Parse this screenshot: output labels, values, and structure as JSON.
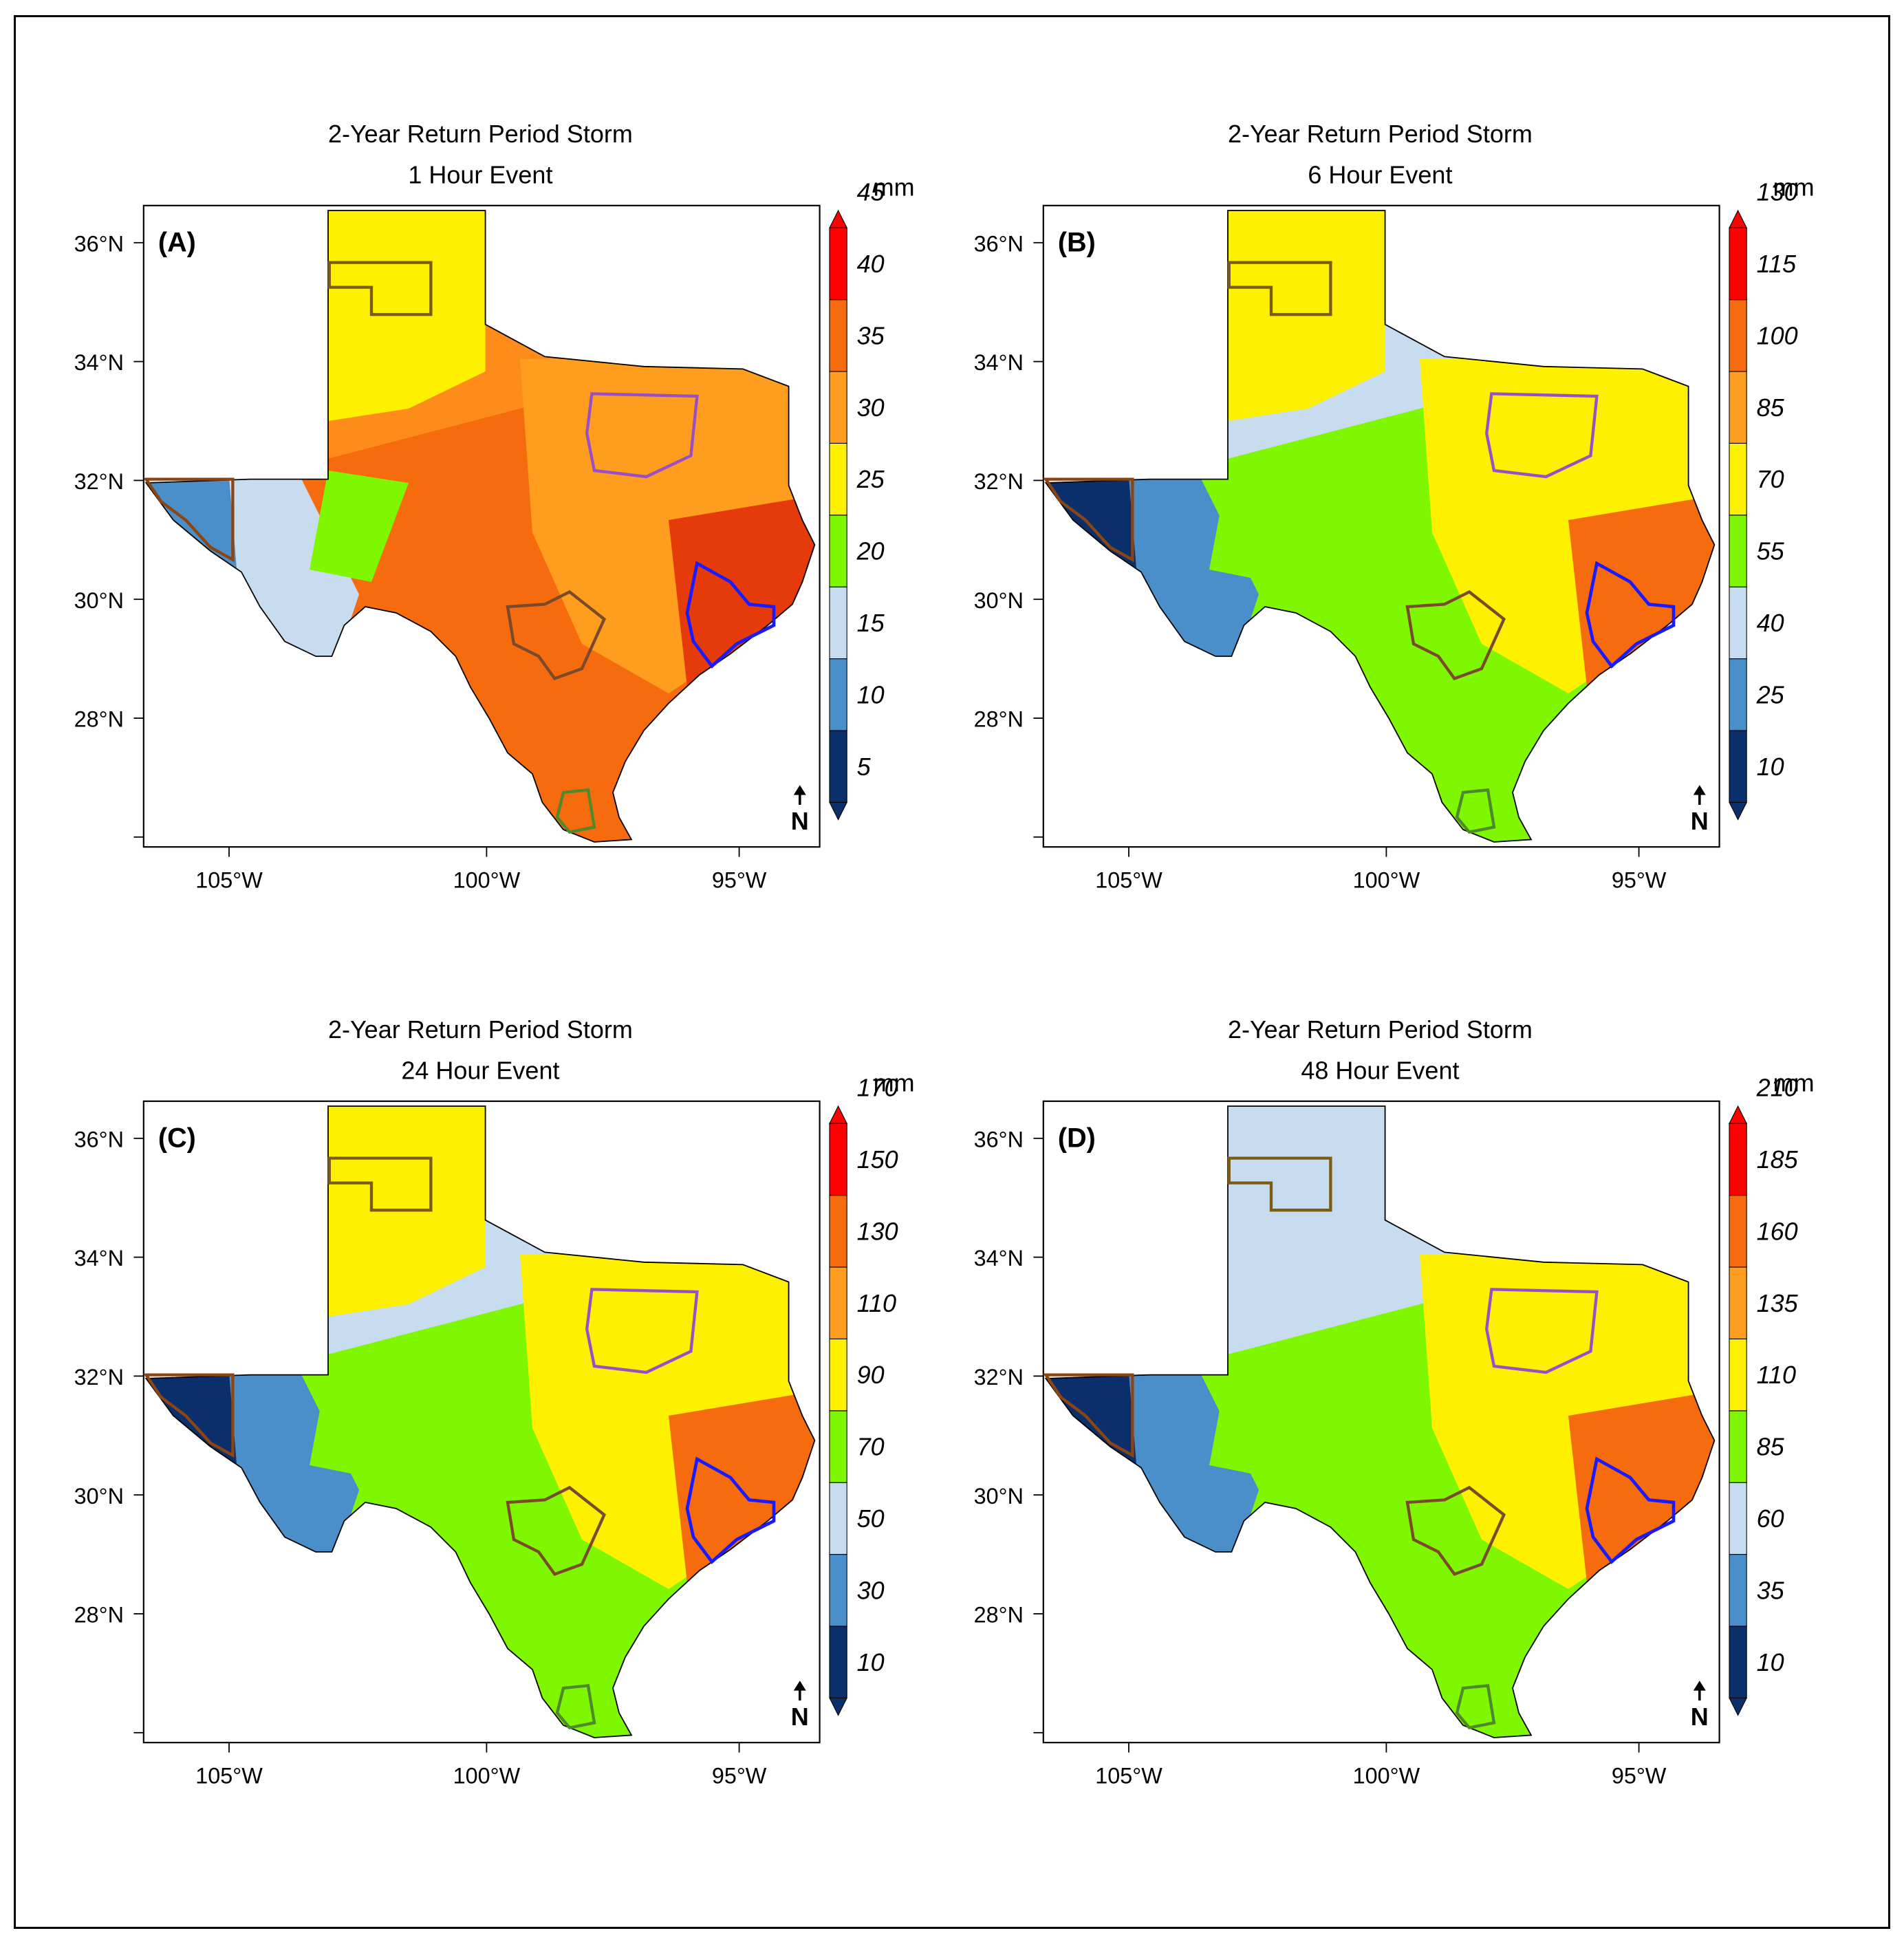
{
  "figure": {
    "panels": [
      {
        "id": "panel-a",
        "label": "(A)",
        "title_line1": "2-Year Return Period Storm",
        "title_line2": "1 Hour Event",
        "unit": "mm",
        "colorbar_ticks": [
          "5",
          "10",
          "15",
          "20",
          "25",
          "30",
          "35",
          "40",
          "45"
        ],
        "fill_colors": [
          "#fe8c1a",
          "#f56b0e",
          "#fdf000",
          "#7ef700",
          "#ff9d1e"
        ],
        "extra_colors": [
          "#e53a0a",
          "#c8dcef",
          "#4a8fc9"
        ]
      },
      {
        "id": "panel-b",
        "label": "(B)",
        "title_line1": "2-Year Return Period Storm",
        "title_line2": "6 Hour Event",
        "unit": "mm",
        "colorbar_ticks": [
          "10",
          "25",
          "40",
          "55",
          "70",
          "85",
          "100",
          "115",
          "130"
        ],
        "fill_colors": [
          "#c8dcef",
          "#7ef700",
          "#fdf000",
          "#7ef700",
          "#fdf000"
        ],
        "extra_colors": [
          "#f56b0e",
          "#4a8fc9",
          "#0b2f6b"
        ]
      },
      {
        "id": "panel-c",
        "label": "(C)",
        "title_line1": "2-Year Return Period Storm",
        "title_line2": "24 Hour Event",
        "unit": "mm",
        "colorbar_ticks": [
          "10",
          "30",
          "50",
          "70",
          "90",
          "110",
          "130",
          "150",
          "170"
        ],
        "fill_colors": [
          "#c8dcef",
          "#7ef700",
          "#fdf000",
          "#7ef700",
          "#fdf000"
        ],
        "extra_colors": [
          "#f56b0e",
          "#4a8fc9",
          "#0b2f6b"
        ]
      },
      {
        "id": "panel-d",
        "label": "(D)",
        "title_line1": "2-Year Return Period Storm",
        "title_line2": "48 Hour Event",
        "unit": "mm",
        "colorbar_ticks": [
          "10",
          "35",
          "60",
          "85",
          "110",
          "135",
          "160",
          "185",
          "210"
        ],
        "fill_colors": [
          "#c8dcef",
          "#7ef700",
          "#c8dcef",
          "#7ef700",
          "#fdf000"
        ],
        "extra_colors": [
          "#f56b0e",
          "#4a8fc9",
          "#0b2f6b"
        ]
      }
    ],
    "lat_ticks": [
      "36°N",
      "34°N",
      "32°N",
      "30°N",
      "28°N"
    ],
    "lon_ticks": [
      "105°W",
      "100°W",
      "95°W"
    ],
    "north_arrow": "N",
    "colorbar_colors": [
      "#0b2f6b",
      "#4a8fc9",
      "#c8dcef",
      "#7ef700",
      "#fdf000",
      "#ff9d1e",
      "#f56b0e",
      "#ff0000"
    ],
    "outline_colors": {
      "panhandle": "#7a5c14",
      "west": "#8b4513",
      "dfw": "#9b4fc4",
      "san_antonio": "#7a4a2a",
      "houston": "#1a1aff",
      "rgv": "#4f8a2a"
    }
  }
}
